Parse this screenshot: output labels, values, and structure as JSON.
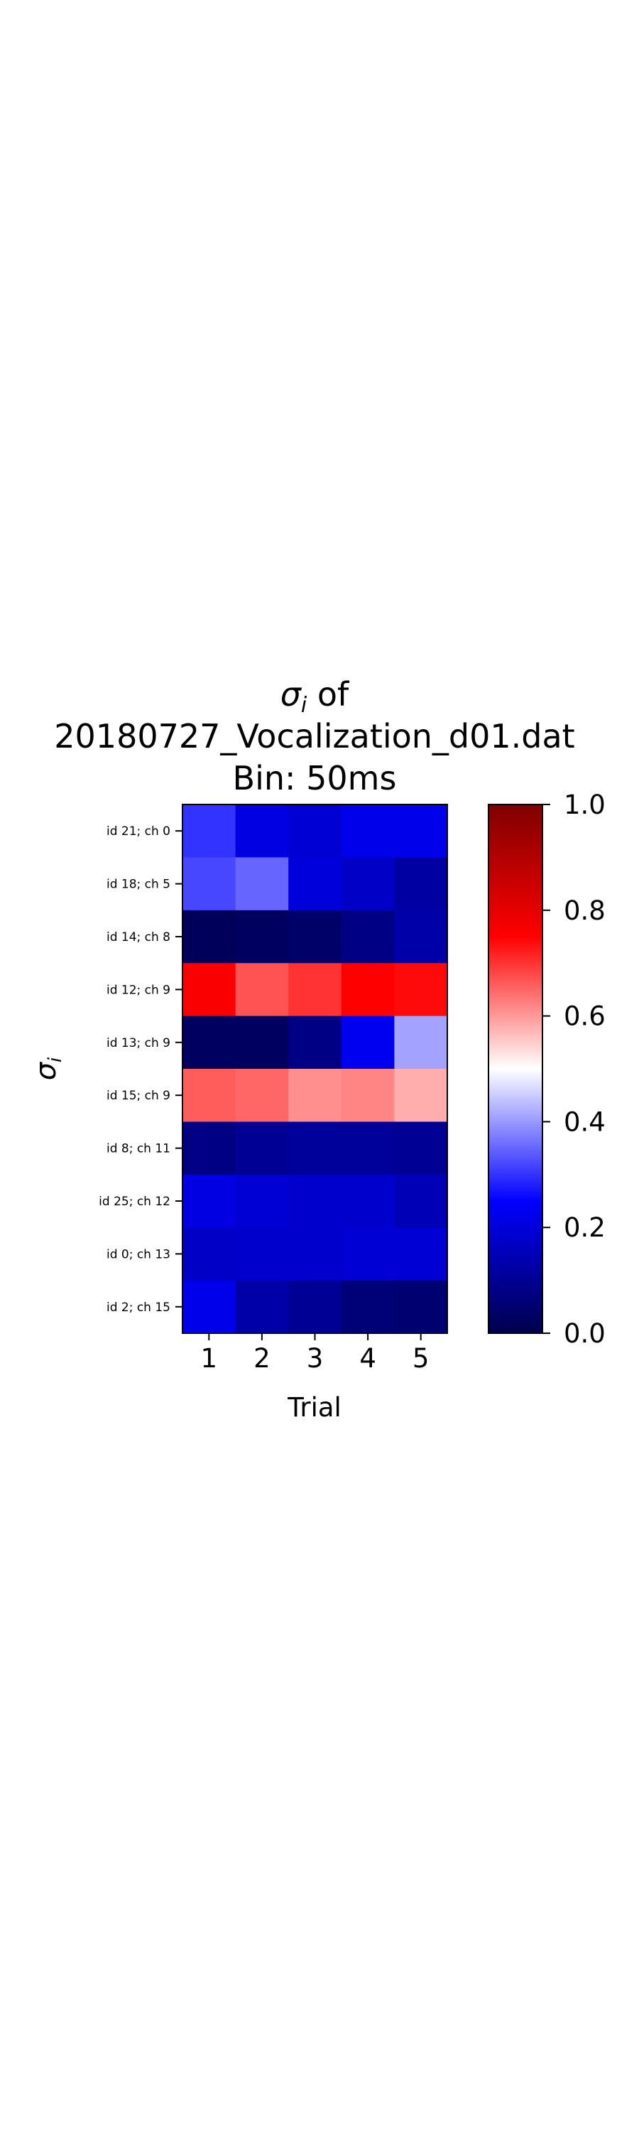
{
  "chart_data": {
    "type": "heatmap",
    "title_lines": [
      "σ",
      "i",
      " of",
      "20180727_Vocalization_d01.dat",
      "Bin: 50ms"
    ],
    "xlabel": "Trial",
    "ylabel_symbol": "σ",
    "ylabel_subscript": "i",
    "x_categories": [
      "1",
      "2",
      "3",
      "4",
      "5"
    ],
    "y_categories": [
      "id 21; ch 0",
      "id 18; ch 5",
      "id 14; ch 8",
      "id 12; ch 9",
      "id 13; ch 9",
      "id 15; ch 9",
      "id 8; ch 11",
      "id 25; ch 12",
      "id 0; ch 13",
      "id 2; ch 15"
    ],
    "values": [
      [
        0.3,
        0.21,
        0.19,
        0.22,
        0.22
      ],
      [
        0.32,
        0.35,
        0.2,
        0.17,
        0.12
      ],
      [
        0.02,
        0.03,
        0.04,
        0.08,
        0.13
      ],
      [
        0.76,
        0.67,
        0.7,
        0.75,
        0.74
      ],
      [
        0.03,
        0.03,
        0.08,
        0.23,
        0.41
      ],
      [
        0.66,
        0.65,
        0.61,
        0.62,
        0.58
      ],
      [
        0.08,
        0.1,
        0.11,
        0.11,
        0.1
      ],
      [
        0.21,
        0.19,
        0.18,
        0.18,
        0.15
      ],
      [
        0.17,
        0.18,
        0.18,
        0.19,
        0.19
      ],
      [
        0.22,
        0.13,
        0.1,
        0.06,
        0.05
      ]
    ],
    "colormap": "seismic",
    "colormap_stops": [
      "#00004c",
      "#0000ff",
      "#ffffff",
      "#ff0000",
      "#7f0000"
    ],
    "vmin": 0.0,
    "vmax": 1.0,
    "colorbar_ticks": [
      "0.0",
      "0.2",
      "0.4",
      "0.6",
      "0.8",
      "1.0"
    ],
    "grid": false,
    "legend": "colorbar-right"
  }
}
